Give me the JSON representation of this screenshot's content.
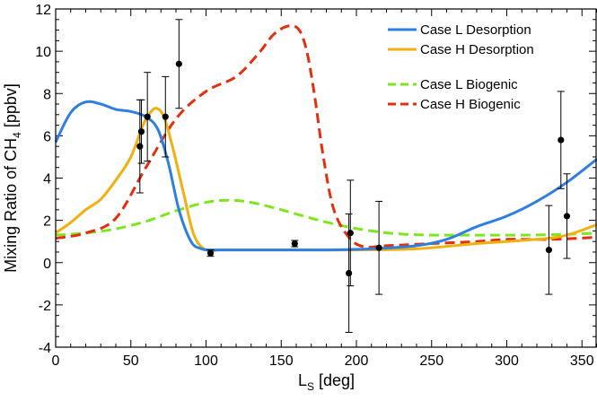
{
  "chart_data": {
    "type": "line",
    "xlabel_main": "L",
    "xlabel_sub": "S",
    "xlabel_rest": " [deg]",
    "ylabel_main": "Mixing Ratio of CH",
    "ylabel_sub": "4",
    "ylabel_rest": " [ppbv]",
    "xlim": [
      0,
      360
    ],
    "ylim": [
      -4,
      12
    ],
    "xticks": [
      0,
      50,
      100,
      150,
      200,
      250,
      300,
      350
    ],
    "yticks": [
      -4,
      -2,
      0,
      2,
      4,
      6,
      8,
      10,
      12
    ],
    "legend_position": "top-right",
    "series": [
      {
        "name": "Case L Desorption",
        "color": "#2f7fe0",
        "dash": "solid",
        "x": [
          0,
          10,
          20,
          30,
          40,
          50,
          60,
          68,
          75,
          82,
          90,
          97,
          102,
          110,
          130,
          150,
          180,
          210,
          240,
          260,
          280,
          300,
          320,
          340,
          360
        ],
        "y": [
          5.7,
          7.1,
          7.6,
          7.5,
          7.25,
          7.15,
          6.9,
          6.3,
          4.7,
          2.5,
          1.0,
          0.65,
          0.6,
          0.6,
          0.6,
          0.6,
          0.6,
          0.65,
          0.8,
          1.1,
          1.7,
          2.2,
          2.9,
          3.8,
          4.9
        ]
      },
      {
        "name": "Case H Desorption",
        "color": "#f0b010",
        "dash": "solid",
        "x": [
          0,
          10,
          20,
          30,
          40,
          50,
          58,
          63,
          67,
          72,
          78,
          85,
          92,
          100,
          110,
          130,
          160,
          200,
          240,
          280,
          320,
          340,
          360
        ],
        "y": [
          1.4,
          1.9,
          2.5,
          3.0,
          3.9,
          5.0,
          6.5,
          7.1,
          7.3,
          6.9,
          5.4,
          3.3,
          1.3,
          0.6,
          0.6,
          0.6,
          0.6,
          0.6,
          0.65,
          0.9,
          1.1,
          1.3,
          1.8
        ]
      },
      {
        "name": "Case L Biogenic",
        "color": "#7ee620",
        "dash": "dashed",
        "x": [
          0,
          20,
          40,
          60,
          80,
          100,
          115,
          130,
          150,
          170,
          190,
          210,
          230,
          250,
          270,
          290,
          310,
          330,
          345,
          360
        ],
        "y": [
          1.3,
          1.4,
          1.6,
          1.95,
          2.45,
          2.85,
          2.95,
          2.85,
          2.5,
          2.1,
          1.75,
          1.5,
          1.35,
          1.3,
          1.3,
          1.3,
          1.3,
          1.32,
          1.35,
          1.4
        ]
      },
      {
        "name": "Case H Biogenic",
        "color": "#e03010",
        "dash": "dashed",
        "x": [
          0,
          20,
          40,
          60,
          80,
          100,
          120,
          135,
          145,
          155,
          162,
          167,
          172,
          178,
          185,
          195,
          205,
          220,
          250,
          280,
          300,
          330,
          360
        ],
        "y": [
          1.15,
          1.4,
          2.1,
          4.5,
          6.8,
          8.1,
          8.8,
          9.9,
          10.8,
          11.2,
          11.0,
          10.0,
          8.0,
          5.0,
          2.5,
          1.2,
          0.75,
          0.8,
          0.9,
          1.0,
          1.1,
          1.1,
          1.2
        ]
      }
    ],
    "observations": [
      {
        "x": 56,
        "y": 5.5,
        "err": 2.2
      },
      {
        "x": 57,
        "y": 6.2,
        "err": 1.5
      },
      {
        "x": 61,
        "y": 6.9,
        "err": 2.1
      },
      {
        "x": 73,
        "y": 6.9,
        "err": 1.9
      },
      {
        "x": 82,
        "y": 9.4,
        "err": 2.1
      },
      {
        "x": 103,
        "y": 0.45,
        "err": 0.15
      },
      {
        "x": 159,
        "y": 0.9,
        "err": 0.15
      },
      {
        "x": 195,
        "y": -0.5,
        "err": 2.8
      },
      {
        "x": 196,
        "y": 1.4,
        "err": 2.5
      },
      {
        "x": 215,
        "y": 0.7,
        "err": 2.2
      },
      {
        "x": 328,
        "y": 0.6,
        "err": 2.1
      },
      {
        "x": 336,
        "y": 5.8,
        "err": 2.3
      },
      {
        "x": 340,
        "y": 2.2,
        "err": 2.0
      }
    ],
    "legend": [
      {
        "label": "Case L Desorption",
        "color": "#2f7fe0",
        "dash": "solid"
      },
      {
        "label": "Case H Desorption",
        "color": "#f0b010",
        "dash": "solid"
      },
      {
        "label": "Case L Biogenic",
        "color": "#7ee620",
        "dash": "dashed"
      },
      {
        "label": "Case H Biogenic",
        "color": "#e03010",
        "dash": "dashed"
      }
    ]
  }
}
